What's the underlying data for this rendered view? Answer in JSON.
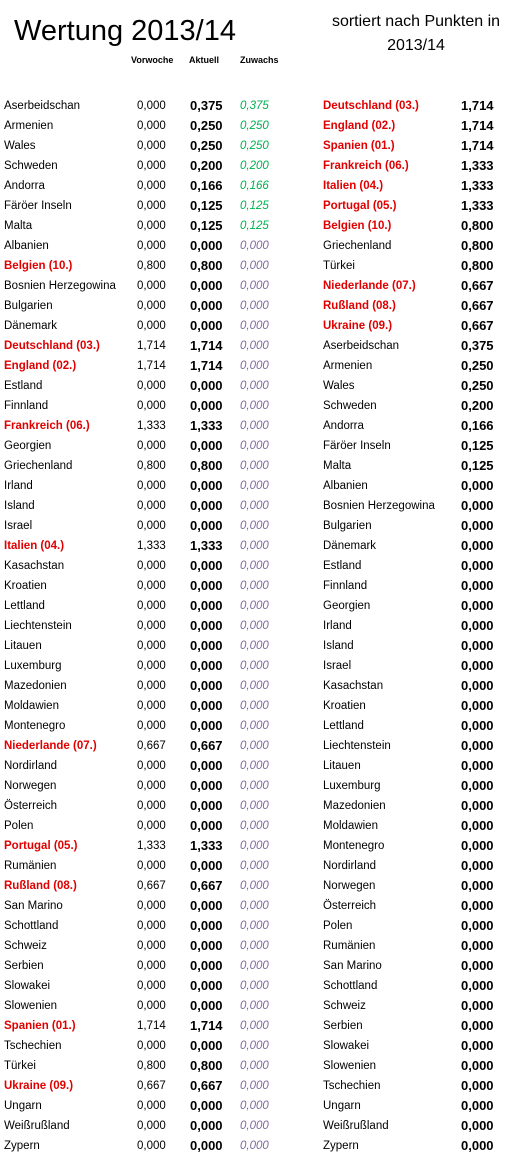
{
  "title": "Wertung 2013/14",
  "subtitle": "sortiert nach Punkten in 2013/14",
  "headers": {
    "previous": "Vorwoche",
    "current": "Aktuell",
    "gain": "Zuwachs"
  },
  "colors": {
    "highlight": "#e00000",
    "gain_positive": "#00b050",
    "gain_zero": "#7e6a9e"
  },
  "rows": [
    {
      "name": "Aserbeidschan",
      "prev": "0,000",
      "cur": "0,375",
      "gain": "0,375",
      "rname": "Deutschland (03.)",
      "rval": "1,714"
    },
    {
      "name": "Armenien",
      "prev": "0,000",
      "cur": "0,250",
      "gain": "0,250",
      "rname": "England (02.)",
      "rval": "1,714"
    },
    {
      "name": "Wales",
      "prev": "0,000",
      "cur": "0,250",
      "gain": "0,250",
      "rname": "Spanien (01.)",
      "rval": "1,714"
    },
    {
      "name": "Schweden",
      "prev": "0,000",
      "cur": "0,200",
      "gain": "0,200",
      "rname": "Frankreich (06.)",
      "rval": "1,333"
    },
    {
      "name": "Andorra",
      "prev": "0,000",
      "cur": "0,166",
      "gain": "0,166",
      "rname": "Italien (04.)",
      "rval": "1,333"
    },
    {
      "name": "Färöer Inseln",
      "prev": "0,000",
      "cur": "0,125",
      "gain": "0,125",
      "rname": "Portugal (05.)",
      "rval": "1,333"
    },
    {
      "name": "Malta",
      "prev": "0,000",
      "cur": "0,125",
      "gain": "0,125",
      "rname": "Belgien (10.)",
      "rval": "0,800"
    },
    {
      "name": "Albanien",
      "prev": "0,000",
      "cur": "0,000",
      "gain": "0,000",
      "rname": "Griechenland",
      "rval": "0,800"
    },
    {
      "name": "Belgien (10.)",
      "prev": "0,800",
      "cur": "0,800",
      "gain": "0,000",
      "rname": "Türkei",
      "rval": "0,800"
    },
    {
      "name": "Bosnien Herzegowina",
      "prev": "0,000",
      "cur": "0,000",
      "gain": "0,000",
      "rname": "Niederlande (07.)",
      "rval": "0,667"
    },
    {
      "name": "Bulgarien",
      "prev": "0,000",
      "cur": "0,000",
      "gain": "0,000",
      "rname": "Rußland (08.)",
      "rval": "0,667"
    },
    {
      "name": "Dänemark",
      "prev": "0,000",
      "cur": "0,000",
      "gain": "0,000",
      "rname": "Ukraine (09.)",
      "rval": "0,667"
    },
    {
      "name": "Deutschland (03.)",
      "prev": "1,714",
      "cur": "1,714",
      "gain": "0,000",
      "rname": "Aserbeidschan",
      "rval": "0,375"
    },
    {
      "name": "England (02.)",
      "prev": "1,714",
      "cur": "1,714",
      "gain": "0,000",
      "rname": "Armenien",
      "rval": "0,250"
    },
    {
      "name": "Estland",
      "prev": "0,000",
      "cur": "0,000",
      "gain": "0,000",
      "rname": "Wales",
      "rval": "0,250"
    },
    {
      "name": "Finnland",
      "prev": "0,000",
      "cur": "0,000",
      "gain": "0,000",
      "rname": "Schweden",
      "rval": "0,200"
    },
    {
      "name": "Frankreich (06.)",
      "prev": "1,333",
      "cur": "1,333",
      "gain": "0,000",
      "rname": "Andorra",
      "rval": "0,166"
    },
    {
      "name": "Georgien",
      "prev": "0,000",
      "cur": "0,000",
      "gain": "0,000",
      "rname": "Färöer Inseln",
      "rval": "0,125"
    },
    {
      "name": "Griechenland",
      "prev": "0,800",
      "cur": "0,800",
      "gain": "0,000",
      "rname": "Malta",
      "rval": "0,125"
    },
    {
      "name": "Irland",
      "prev": "0,000",
      "cur": "0,000",
      "gain": "0,000",
      "rname": "Albanien",
      "rval": "0,000"
    },
    {
      "name": "Island",
      "prev": "0,000",
      "cur": "0,000",
      "gain": "0,000",
      "rname": "Bosnien Herzegowina",
      "rval": "0,000"
    },
    {
      "name": "Israel",
      "prev": "0,000",
      "cur": "0,000",
      "gain": "0,000",
      "rname": "Bulgarien",
      "rval": "0,000"
    },
    {
      "name": "Italien (04.)",
      "prev": "1,333",
      "cur": "1,333",
      "gain": "0,000",
      "rname": "Dänemark",
      "rval": "0,000"
    },
    {
      "name": "Kasachstan",
      "prev": "0,000",
      "cur": "0,000",
      "gain": "0,000",
      "rname": "Estland",
      "rval": "0,000"
    },
    {
      "name": "Kroatien",
      "prev": "0,000",
      "cur": "0,000",
      "gain": "0,000",
      "rname": "Finnland",
      "rval": "0,000"
    },
    {
      "name": "Lettland",
      "prev": "0,000",
      "cur": "0,000",
      "gain": "0,000",
      "rname": "Georgien",
      "rval": "0,000"
    },
    {
      "name": "Liechtenstein",
      "prev": "0,000",
      "cur": "0,000",
      "gain": "0,000",
      "rname": "Irland",
      "rval": "0,000"
    },
    {
      "name": "Litauen",
      "prev": "0,000",
      "cur": "0,000",
      "gain": "0,000",
      "rname": "Island",
      "rval": "0,000"
    },
    {
      "name": "Luxemburg",
      "prev": "0,000",
      "cur": "0,000",
      "gain": "0,000",
      "rname": "Israel",
      "rval": "0,000"
    },
    {
      "name": "Mazedonien",
      "prev": "0,000",
      "cur": "0,000",
      "gain": "0,000",
      "rname": "Kasachstan",
      "rval": "0,000"
    },
    {
      "name": "Moldawien",
      "prev": "0,000",
      "cur": "0,000",
      "gain": "0,000",
      "rname": "Kroatien",
      "rval": "0,000"
    },
    {
      "name": "Montenegro",
      "prev": "0,000",
      "cur": "0,000",
      "gain": "0,000",
      "rname": "Lettland",
      "rval": "0,000"
    },
    {
      "name": "Niederlande (07.)",
      "prev": "0,667",
      "cur": "0,667",
      "gain": "0,000",
      "rname": "Liechtenstein",
      "rval": "0,000"
    },
    {
      "name": "Nordirland",
      "prev": "0,000",
      "cur": "0,000",
      "gain": "0,000",
      "rname": "Litauen",
      "rval": "0,000"
    },
    {
      "name": "Norwegen",
      "prev": "0,000",
      "cur": "0,000",
      "gain": "0,000",
      "rname": "Luxemburg",
      "rval": "0,000"
    },
    {
      "name": "Österreich",
      "prev": "0,000",
      "cur": "0,000",
      "gain": "0,000",
      "rname": "Mazedonien",
      "rval": "0,000"
    },
    {
      "name": "Polen",
      "prev": "0,000",
      "cur": "0,000",
      "gain": "0,000",
      "rname": "Moldawien",
      "rval": "0,000"
    },
    {
      "name": "Portugal (05.)",
      "prev": "1,333",
      "cur": "1,333",
      "gain": "0,000",
      "rname": "Montenegro",
      "rval": "0,000"
    },
    {
      "name": "Rumänien",
      "prev": "0,000",
      "cur": "0,000",
      "gain": "0,000",
      "rname": "Nordirland",
      "rval": "0,000"
    },
    {
      "name": "Rußland (08.)",
      "prev": "0,667",
      "cur": "0,667",
      "gain": "0,000",
      "rname": "Norwegen",
      "rval": "0,000"
    },
    {
      "name": "San Marino",
      "prev": "0,000",
      "cur": "0,000",
      "gain": "0,000",
      "rname": "Österreich",
      "rval": "0,000"
    },
    {
      "name": "Schottland",
      "prev": "0,000",
      "cur": "0,000",
      "gain": "0,000",
      "rname": "Polen",
      "rval": "0,000"
    },
    {
      "name": "Schweiz",
      "prev": "0,000",
      "cur": "0,000",
      "gain": "0,000",
      "rname": "Rumänien",
      "rval": "0,000"
    },
    {
      "name": "Serbien",
      "prev": "0,000",
      "cur": "0,000",
      "gain": "0,000",
      "rname": "San Marino",
      "rval": "0,000"
    },
    {
      "name": "Slowakei",
      "prev": "0,000",
      "cur": "0,000",
      "gain": "0,000",
      "rname": "Schottland",
      "rval": "0,000"
    },
    {
      "name": "Slowenien",
      "prev": "0,000",
      "cur": "0,000",
      "gain": "0,000",
      "rname": "Schweiz",
      "rval": "0,000"
    },
    {
      "name": "Spanien (01.)",
      "prev": "1,714",
      "cur": "1,714",
      "gain": "0,000",
      "rname": "Serbien",
      "rval": "0,000"
    },
    {
      "name": "Tschechien",
      "prev": "0,000",
      "cur": "0,000",
      "gain": "0,000",
      "rname": "Slowakei",
      "rval": "0,000"
    },
    {
      "name": "Türkei",
      "prev": "0,800",
      "cur": "0,800",
      "gain": "0,000",
      "rname": "Slowenien",
      "rval": "0,000"
    },
    {
      "name": "Ukraine (09.)",
      "prev": "0,667",
      "cur": "0,667",
      "gain": "0,000",
      "rname": "Tschechien",
      "rval": "0,000"
    },
    {
      "name": "Ungarn",
      "prev": "0,000",
      "cur": "0,000",
      "gain": "0,000",
      "rname": "Ungarn",
      "rval": "0,000"
    },
    {
      "name": "Weißrußland",
      "prev": "0,000",
      "cur": "0,000",
      "gain": "0,000",
      "rname": "Weißrußland",
      "rval": "0,000"
    },
    {
      "name": "Zypern",
      "prev": "0,000",
      "cur": "0,000",
      "gain": "0,000",
      "rname": "Zypern",
      "rval": "0,000"
    }
  ]
}
